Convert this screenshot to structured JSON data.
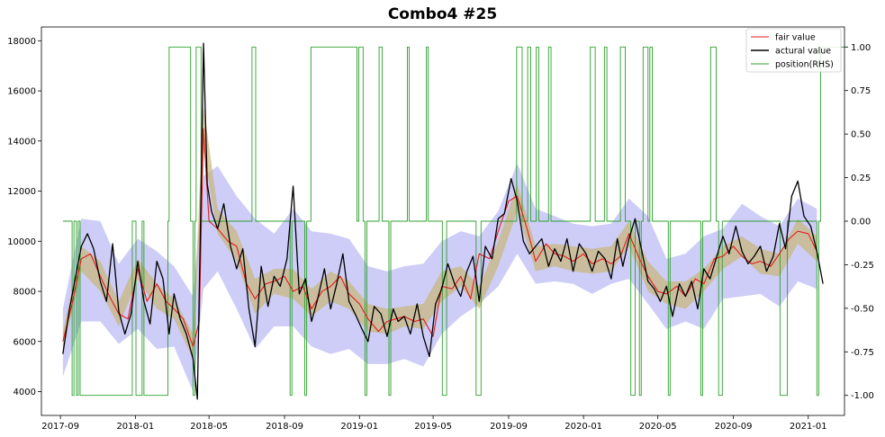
{
  "chart_data": {
    "type": "line",
    "title": "Combo4 #25",
    "xlabel": "",
    "ylabel": "",
    "y2label": "",
    "x_ticks": [
      "2017-09",
      "2018-01",
      "2018-05",
      "2018-09",
      "2019-01",
      "2019-05",
      "2019-09",
      "2020-01",
      "2020-05",
      "2020-09",
      "2021-01"
    ],
    "y_ticks": [
      4000,
      6000,
      8000,
      10000,
      12000,
      14000,
      16000,
      18000
    ],
    "y2_ticks": [
      "1.00",
      "0.75",
      "0.50",
      "0.25",
      "0.00",
      "-0.25",
      "-0.50",
      "-0.75",
      "-1.00"
    ],
    "xlim": [
      "2017-08-01",
      "2021-03-01"
    ],
    "ylim": [
      3050,
      18550
    ],
    "y2lim": [
      -1.115,
      1.115
    ],
    "legend_position": "top-right",
    "grid": false,
    "colors": {
      "fair_value": "#e41a1c",
      "actual_value": "#000000",
      "position": "#2ca02c",
      "band_outer": "#8888ee",
      "band_inner": "#c7b778"
    },
    "series": [
      {
        "name": "fair value",
        "axis": "left",
        "x": [
          "2017-09-05",
          "2017-09-20",
          "2017-10-05",
          "2017-10-20",
          "2017-11-05",
          "2017-11-20",
          "2017-12-05",
          "2017-12-20",
          "2018-01-05",
          "2018-01-20",
          "2018-02-05",
          "2018-02-20",
          "2018-03-05",
          "2018-03-20",
          "2018-04-05",
          "2018-04-15",
          "2018-04-22",
          "2018-05-01",
          "2018-05-15",
          "2018-06-01",
          "2018-06-15",
          "2018-07-01",
          "2018-07-15",
          "2018-08-01",
          "2018-08-15",
          "2018-09-01",
          "2018-09-15",
          "2018-10-01",
          "2018-10-15",
          "2018-11-01",
          "2018-11-15",
          "2018-12-01",
          "2018-12-15",
          "2019-01-01",
          "2019-01-15",
          "2019-02-01",
          "2019-02-15",
          "2019-03-01",
          "2019-03-15",
          "2019-04-01",
          "2019-04-15",
          "2019-05-01",
          "2019-05-15",
          "2019-06-01",
          "2019-06-15",
          "2019-07-01",
          "2019-07-15",
          "2019-08-01",
          "2019-08-15",
          "2019-09-01",
          "2019-09-15",
          "2019-10-01",
          "2019-10-15",
          "2019-11-01",
          "2019-11-15",
          "2019-12-01",
          "2019-12-15",
          "2020-01-01",
          "2020-01-15",
          "2020-02-01",
          "2020-02-15",
          "2020-03-01",
          "2020-03-15",
          "2020-04-01",
          "2020-04-15",
          "2020-05-01",
          "2020-05-15",
          "2020-06-01",
          "2020-06-15",
          "2020-07-01",
          "2020-07-15",
          "2020-08-01",
          "2020-08-15",
          "2020-09-01",
          "2020-09-15",
          "2020-10-01",
          "2020-10-15",
          "2020-11-01",
          "2020-11-15",
          "2020-12-01",
          "2020-12-15",
          "2021-01-01",
          "2021-01-15"
        ],
        "values": [
          6000,
          7500,
          9300,
          9500,
          8600,
          7800,
          7100,
          6900,
          8900,
          7600,
          8300,
          7600,
          7300,
          6900,
          5800,
          6800,
          14500,
          10800,
          10500,
          10000,
          9800,
          8300,
          7700,
          8300,
          8400,
          8600,
          8000,
          8200,
          7300,
          8000,
          8200,
          8600,
          7900,
          7500,
          6900,
          6400,
          6800,
          6900,
          7000,
          6800,
          6900,
          6200,
          8200,
          8100,
          8600,
          7700,
          9500,
          9300,
          10400,
          11600,
          11800,
          10500,
          9200,
          9900,
          9500,
          9400,
          9200,
          9500,
          9100,
          9300,
          9100,
          9400,
          10300,
          9300,
          8600,
          8000,
          7900,
          8200,
          7800,
          8500,
          8300,
          9300,
          9400,
          9800,
          9400,
          9100,
          9200,
          9000,
          9500,
          10100,
          10400,
          10300,
          9600
        ]
      },
      {
        "name": "actural value",
        "axis": "left",
        "x": [
          "2017-09-05",
          "2017-09-15",
          "2017-09-25",
          "2017-10-05",
          "2017-10-15",
          "2017-10-25",
          "2017-11-05",
          "2017-11-15",
          "2017-11-25",
          "2017-12-05",
          "2017-12-15",
          "2017-12-25",
          "2018-01-05",
          "2018-01-15",
          "2018-01-25",
          "2018-02-05",
          "2018-02-15",
          "2018-02-25",
          "2018-03-05",
          "2018-03-15",
          "2018-03-25",
          "2018-04-05",
          "2018-04-12",
          "2018-04-18",
          "2018-04-22",
          "2018-04-28",
          "2018-05-05",
          "2018-05-15",
          "2018-05-25",
          "2018-06-05",
          "2018-06-15",
          "2018-06-25",
          "2018-07-05",
          "2018-07-15",
          "2018-07-25",
          "2018-08-05",
          "2018-08-15",
          "2018-08-25",
          "2018-09-05",
          "2018-09-15",
          "2018-09-25",
          "2018-10-05",
          "2018-10-15",
          "2018-10-25",
          "2018-11-05",
          "2018-11-15",
          "2018-11-25",
          "2018-12-05",
          "2018-12-15",
          "2018-12-25",
          "2019-01-05",
          "2019-01-15",
          "2019-01-25",
          "2019-02-05",
          "2019-02-15",
          "2019-02-25",
          "2019-03-05",
          "2019-03-15",
          "2019-03-25",
          "2019-04-05",
          "2019-04-15",
          "2019-04-25",
          "2019-05-05",
          "2019-05-15",
          "2019-05-25",
          "2019-06-05",
          "2019-06-15",
          "2019-06-25",
          "2019-07-05",
          "2019-07-15",
          "2019-07-25",
          "2019-08-05",
          "2019-08-15",
          "2019-08-25",
          "2019-09-05",
          "2019-09-15",
          "2019-09-25",
          "2019-10-05",
          "2019-10-15",
          "2019-10-25",
          "2019-11-05",
          "2019-11-15",
          "2019-11-25",
          "2019-12-05",
          "2019-12-15",
          "2019-12-25",
          "2020-01-05",
          "2020-01-15",
          "2020-01-25",
          "2020-02-05",
          "2020-02-15",
          "2020-02-25",
          "2020-03-05",
          "2020-03-15",
          "2020-03-25",
          "2020-04-05",
          "2020-04-15",
          "2020-04-25",
          "2020-05-05",
          "2020-05-15",
          "2020-05-25",
          "2020-06-05",
          "2020-06-15",
          "2020-06-25",
          "2020-07-05",
          "2020-07-15",
          "2020-07-25",
          "2020-08-05",
          "2020-08-15",
          "2020-08-25",
          "2020-09-05",
          "2020-09-15",
          "2020-09-25",
          "2020-10-05",
          "2020-10-15",
          "2020-10-25",
          "2020-11-05",
          "2020-11-15",
          "2020-11-25",
          "2020-12-05",
          "2020-12-15",
          "2020-12-25",
          "2021-01-05",
          "2021-01-15",
          "2021-01-25"
        ],
        "values": [
          5500,
          7200,
          8500,
          9800,
          10300,
          9700,
          8400,
          7600,
          9900,
          7200,
          6300,
          7100,
          9200,
          7600,
          6700,
          9200,
          8500,
          6300,
          7900,
          6900,
          6300,
          5300,
          3700,
          12000,
          17900,
          12300,
          11200,
          10500,
          11500,
          9800,
          8900,
          9700,
          7300,
          5800,
          9000,
          7400,
          8600,
          8200,
          9300,
          12200,
          7900,
          8500,
          6800,
          7700,
          8900,
          7300,
          8300,
          9500,
          7600,
          7100,
          6500,
          6000,
          7400,
          7100,
          6200,
          7300,
          6800,
          7000,
          6300,
          7500,
          6200,
          5400,
          7500,
          8100,
          9100,
          8300,
          7800,
          8800,
          9400,
          7600,
          9800,
          9300,
          10900,
          11100,
          12500,
          11600,
          10000,
          9500,
          9800,
          10100,
          9000,
          9700,
          9200,
          10100,
          8800,
          9900,
          9500,
          8800,
          9600,
          9300,
          8500,
          10100,
          9000,
          10100,
          10900,
          9600,
          8400,
          8100,
          7600,
          8200,
          7000,
          8300,
          7800,
          8400,
          7300,
          8900,
          8500,
          9400,
          10200,
          9500,
          10600,
          9600,
          9100,
          9400,
          9800,
          8800,
          9400,
          10700,
          9700,
          11800,
          12400,
          11000,
          10600,
          9600,
          8300
        ]
      },
      {
        "name": "position(RHS)",
        "axis": "right",
        "step": true,
        "x": [
          "2017-09-05",
          "2017-09-20",
          "2017-09-23",
          "2017-09-27",
          "2017-09-30",
          "2017-10-03",
          "2017-12-27",
          "2018-01-02",
          "2018-01-12",
          "2018-01-15",
          "2018-02-23",
          "2018-02-25",
          "2018-04-01",
          "2018-04-05",
          "2018-04-08",
          "2018-04-10",
          "2018-04-18",
          "2018-07-10",
          "2018-07-16",
          "2018-09-10",
          "2018-09-13",
          "2018-10-04",
          "2018-10-07",
          "2018-10-14",
          "2018-12-28",
          "2018-12-31",
          "2019-01-07",
          "2019-01-10",
          "2019-01-13",
          "2019-02-02",
          "2019-02-07",
          "2019-02-18",
          "2019-02-21",
          "2019-03-20",
          "2019-03-23",
          "2019-04-20",
          "2019-04-23",
          "2019-05-16",
          "2019-05-23",
          "2019-07-10",
          "2019-07-18",
          "2019-09-14",
          "2019-09-23",
          "2019-10-02",
          "2019-10-07",
          "2019-10-16",
          "2019-10-20",
          "2019-11-05",
          "2019-11-09",
          "2020-01-12",
          "2020-01-20",
          "2020-02-04",
          "2020-02-08",
          "2020-03-01",
          "2020-03-09",
          "2020-03-18",
          "2020-03-25",
          "2020-04-01",
          "2020-04-04",
          "2020-04-07",
          "2020-04-15",
          "2020-04-18",
          "2020-04-22",
          "2020-05-18",
          "2020-05-21",
          "2020-07-10",
          "2020-07-13",
          "2020-07-26",
          "2020-08-04",
          "2020-08-08",
          "2020-08-14",
          "2020-11-16",
          "2020-11-28",
          "2021-01-15",
          "2021-01-18",
          "2021-01-21"
        ],
        "values": [
          0,
          -1,
          0,
          -1,
          0,
          -1,
          0,
          -1,
          0,
          -1,
          0,
          1,
          0,
          -1,
          0,
          1,
          0,
          1,
          0,
          -1,
          0,
          -1,
          0,
          1,
          0,
          1,
          0,
          -1,
          0,
          1,
          0,
          -1,
          0,
          1,
          0,
          1,
          0,
          -1,
          0,
          -1,
          0,
          1,
          0,
          1,
          0,
          1,
          0,
          1,
          0,
          1,
          0,
          1,
          0,
          1,
          0,
          -1,
          0,
          -1,
          0,
          1,
          0,
          1,
          0,
          -1,
          0,
          -1,
          0,
          1,
          0,
          -1,
          0,
          -1,
          0,
          -1,
          0,
          1
        ]
      }
    ],
    "bands": [
      {
        "name": "",
        "kind": "outer",
        "x": [
          "2017-09-05",
          "2017-10-05",
          "2017-11-05",
          "2017-12-05",
          "2018-01-05",
          "2018-02-05",
          "2018-03-05",
          "2018-04-05",
          "2018-04-22",
          "2018-05-15",
          "2018-06-15",
          "2018-07-15",
          "2018-08-15",
          "2018-09-15",
          "2018-10-15",
          "2018-11-15",
          "2018-12-15",
          "2019-01-15",
          "2019-02-15",
          "2019-03-15",
          "2019-04-15",
          "2019-05-15",
          "2019-06-15",
          "2019-07-15",
          "2019-08-15",
          "2019-09-15",
          "2019-10-15",
          "2019-11-15",
          "2019-12-15",
          "2020-01-15",
          "2020-02-15",
          "2020-03-15",
          "2020-04-15",
          "2020-05-15",
          "2020-06-15",
          "2020-07-15",
          "2020-08-15",
          "2020-09-15",
          "2020-10-15",
          "2020-11-15",
          "2020-12-15",
          "2021-01-15"
        ],
        "upper": [
          7300,
          10900,
          10800,
          9100,
          10100,
          9600,
          9000,
          7800,
          12600,
          13000,
          11800,
          10900,
          10300,
          11300,
          10400,
          10300,
          10100,
          9000,
          8800,
          9000,
          9100,
          10000,
          10400,
          10200,
          11200,
          13100,
          11300,
          11000,
          10700,
          10600,
          10700,
          11700,
          11000,
          9300,
          9500,
          10200,
          10500,
          11500,
          11000,
          10600,
          11700,
          11300
        ],
        "lower": [
          4600,
          6800,
          6800,
          5900,
          6500,
          5700,
          5800,
          4000,
          8100,
          8800,
          7300,
          5700,
          6600,
          6600,
          5800,
          5500,
          5700,
          5100,
          5100,
          5300,
          5000,
          6300,
          7000,
          7500,
          8200,
          9500,
          8300,
          8400,
          8300,
          7900,
          8300,
          8500,
          7500,
          6500,
          6800,
          6500,
          7700,
          7800,
          7900,
          7400,
          8400,
          8100
        ]
      },
      {
        "name": "",
        "kind": "inner",
        "x": [
          "2017-09-05",
          "2017-10-05",
          "2017-11-05",
          "2017-12-05",
          "2018-01-05",
          "2018-02-05",
          "2018-03-05",
          "2018-04-05",
          "2018-04-22",
          "2018-05-15",
          "2018-06-15",
          "2018-07-15",
          "2018-08-15",
          "2018-09-15",
          "2018-10-15",
          "2018-11-15",
          "2018-12-15",
          "2019-01-15",
          "2019-02-15",
          "2019-03-15",
          "2019-04-15",
          "2019-05-15",
          "2019-06-15",
          "2019-07-15",
          "2019-08-15",
          "2019-09-15",
          "2019-10-15",
          "2019-11-15",
          "2019-12-15",
          "2020-01-15",
          "2020-02-15",
          "2020-03-15",
          "2020-04-15",
          "2020-05-15",
          "2020-06-15",
          "2020-07-15",
          "2020-08-15",
          "2020-09-15",
          "2020-10-15",
          "2020-11-15",
          "2020-12-15",
          "2021-01-15"
        ],
        "upper": [
          6400,
          9800,
          9200,
          7600,
          9300,
          8300,
          7700,
          6300,
          15400,
          11300,
          10400,
          8500,
          8900,
          8900,
          8100,
          8800,
          8400,
          7500,
          7300,
          7400,
          7500,
          8800,
          9000,
          8200,
          10000,
          12300,
          9800,
          9900,
          9800,
          9700,
          9800,
          10800,
          9200,
          8400,
          8400,
          8900,
          9800,
          10200,
          9700,
          9500,
          10900,
          10200
        ],
        "lower": [
          5600,
          8800,
          8000,
          6600,
          8500,
          7300,
          6900,
          5300,
          13600,
          10300,
          9200,
          7100,
          7900,
          7700,
          7000,
          7600,
          7300,
          6400,
          6300,
          6600,
          6500,
          7600,
          8200,
          7300,
          9000,
          11200,
          8800,
          9000,
          8800,
          8700,
          8800,
          9800,
          8000,
          7500,
          7300,
          8000,
          8900,
          9400,
          8700,
          8600,
          9900,
          9200
        ]
      }
    ]
  }
}
